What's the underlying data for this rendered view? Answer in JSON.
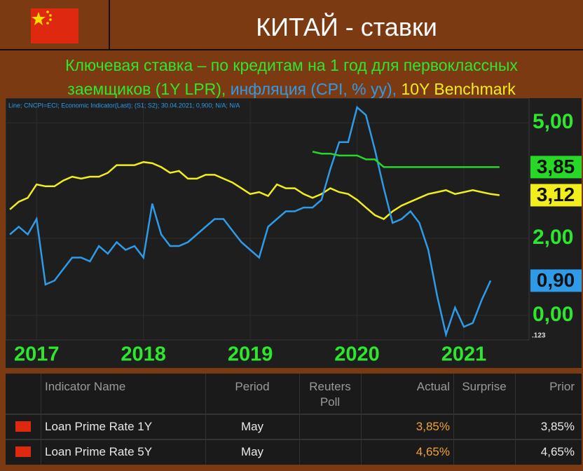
{
  "header": {
    "title": "КИТАЙ - ставки"
  },
  "subtitle": [
    "Ключевая ставка – по кредитам на 1 год для первоклассных",
    "заемщиков (1Y LPR),",
    "инфляция (CPI, % yy),",
    "10Y Benchmark"
  ],
  "chart_data": {
    "type": "line",
    "legend_text": "Line; CNCPI=ECI; Economic Indicator(Last); (S1; S2); 30.04.2021; 0,900; N/A; N/A",
    "corner_label": ".123",
    "x": [
      2016.75,
      2016.833,
      2016.917,
      2017,
      2017.083,
      2017.167,
      2017.25,
      2017.333,
      2017.417,
      2017.5,
      2017.583,
      2017.667,
      2017.75,
      2017.833,
      2017.917,
      2018,
      2018.083,
      2018.167,
      2018.25,
      2018.333,
      2018.417,
      2018.5,
      2018.583,
      2018.667,
      2018.75,
      2018.833,
      2018.917,
      2019,
      2019.083,
      2019.167,
      2019.25,
      2019.333,
      2019.417,
      2019.5,
      2019.583,
      2019.667,
      2019.75,
      2019.833,
      2019.917,
      2020,
      2020.083,
      2020.167,
      2020.25,
      2020.333,
      2020.417,
      2020.5,
      2020.583,
      2020.667,
      2020.75,
      2020.833,
      2020.917,
      2021,
      2021.083,
      2021.167,
      2021.25,
      2021.333
    ],
    "xlim": [
      2016.71,
      2021.61
    ],
    "xticks": [
      2017,
      2018,
      2019,
      2020,
      2021
    ],
    "ylim": [
      -0.64,
      5.55
    ],
    "yticks": [
      {
        "value": 0,
        "label": "0,00"
      },
      {
        "value": 2,
        "label": "2,00"
      },
      {
        "value": 5,
        "label": "5,00"
      }
    ],
    "grid": true,
    "series": [
      {
        "name": "10Y Benchmark",
        "color": "#f2ee1c",
        "last_label": "3,12",
        "values": [
          2.75,
          2.95,
          3.05,
          3.4,
          3.35,
          3.35,
          3.5,
          3.6,
          3.55,
          3.6,
          3.6,
          3.7,
          3.9,
          3.9,
          3.9,
          3.98,
          3.95,
          3.85,
          3.7,
          3.75,
          3.55,
          3.55,
          3.65,
          3.65,
          3.55,
          3.45,
          3.3,
          3.15,
          3.2,
          3.1,
          3.4,
          3.3,
          3.3,
          3.15,
          3.05,
          3.15,
          3.3,
          3.2,
          3.15,
          3.0,
          2.8,
          2.6,
          2.5,
          2.7,
          2.85,
          2.95,
          3.05,
          3.15,
          3.2,
          3.25,
          3.15,
          3.2,
          3.25,
          3.2,
          3.15,
          3.12
        ]
      },
      {
        "name": "CPI",
        "color": "#2f9be8",
        "last_label": "0,90",
        "values": [
          2.1,
          2.3,
          2.1,
          2.5,
          0.8,
          0.9,
          1.2,
          1.5,
          1.5,
          1.4,
          1.8,
          1.6,
          1.9,
          1.7,
          1.8,
          1.5,
          2.9,
          2.1,
          1.8,
          1.8,
          1.9,
          2.1,
          2.3,
          2.5,
          2.5,
          2.2,
          1.9,
          1.7,
          1.5,
          2.3,
          2.5,
          2.7,
          2.7,
          2.8,
          2.8,
          3.0,
          3.8,
          4.5,
          4.5,
          5.4,
          5.2,
          4.3,
          3.3,
          2.4,
          2.5,
          2.7,
          2.4,
          1.7,
          0.5,
          -0.5,
          0.2,
          -0.3,
          -0.2,
          0.4,
          0.9,
          null
        ]
      },
      {
        "name": "1Y LPR",
        "color": "#27d827",
        "last_label": "3,85",
        "values": [
          null,
          null,
          null,
          null,
          null,
          null,
          null,
          null,
          null,
          null,
          null,
          null,
          null,
          null,
          null,
          null,
          null,
          null,
          null,
          null,
          null,
          null,
          null,
          null,
          null,
          null,
          null,
          null,
          null,
          null,
          null,
          null,
          null,
          null,
          4.25,
          4.2,
          4.2,
          4.15,
          4.15,
          4.15,
          4.05,
          4.05,
          3.85,
          3.85,
          3.85,
          3.85,
          3.85,
          3.85,
          3.85,
          3.85,
          3.85,
          3.85,
          3.85,
          3.85,
          3.85,
          3.85
        ]
      }
    ]
  },
  "table": {
    "columns": [
      "Indicator Name",
      "Period",
      "Reuters Poll",
      "Actual",
      "Surprise",
      "Prior"
    ],
    "rows": [
      {
        "name": "Loan Prime Rate 1Y",
        "period": "May",
        "actual": "3,85%",
        "prior": "3,85%"
      },
      {
        "name": "Loan Prime Rate 5Y",
        "period": "May",
        "actual": "4,65%",
        "prior": "4,65%"
      }
    ]
  }
}
